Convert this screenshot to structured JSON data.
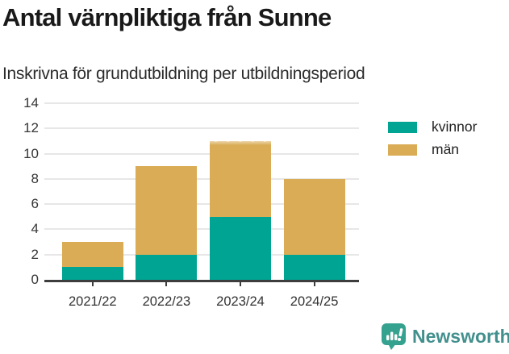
{
  "header": {
    "title": "Antal värnpliktiga från Sunne",
    "subtitle": "Inskrivna för grundutbildning per utbildningsperiod"
  },
  "chart_data": {
    "type": "bar",
    "stacked": true,
    "title": "Antal värnpliktiga från Sunne",
    "subtitle": "Inskrivna för grundutbildning per utbildningsperiod",
    "categories": [
      "2021/22",
      "2022/23",
      "2023/24",
      "2024/25"
    ],
    "series": [
      {
        "name": "kvinnor",
        "color": "#00A493",
        "values": [
          1,
          2,
          5,
          2
        ]
      },
      {
        "name": "män",
        "color": "#D9AC55",
        "values": [
          2,
          7,
          6,
          6
        ]
      }
    ],
    "stack_totals": [
      3,
      9,
      11,
      8
    ],
    "ylim": [
      0,
      14
    ],
    "yticks": [
      0,
      2,
      4,
      6,
      8,
      10,
      12,
      14
    ],
    "grid": true,
    "legend_position": "right",
    "frayed_top_categories": [
      "2023/24"
    ]
  },
  "footer": {
    "brand": "Newsworthy"
  },
  "colors": {
    "series_kvinnor": "#00A493",
    "series_man": "#D9AC55",
    "brand_teal": "#42908D",
    "axis": "#3D3D3D",
    "gridline": "#E7E7E7"
  }
}
